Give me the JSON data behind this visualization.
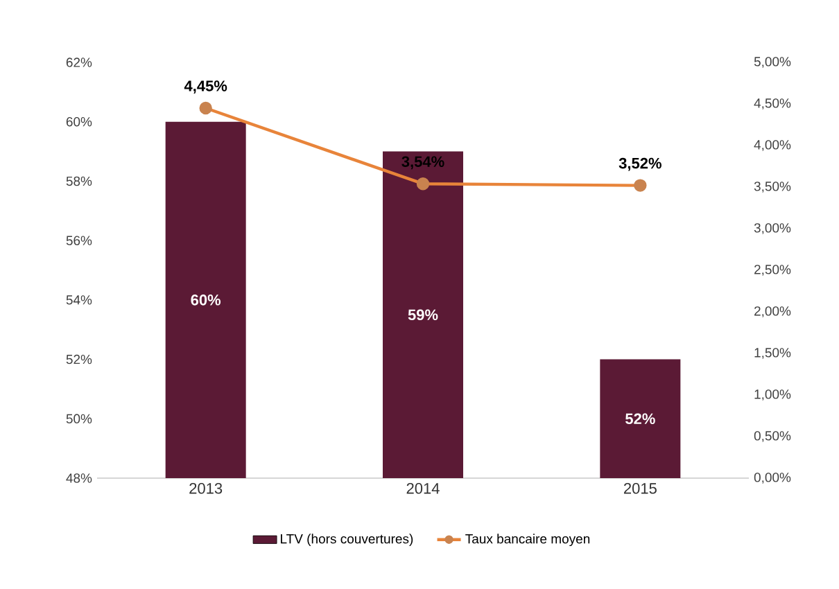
{
  "chart_data": {
    "type": "bar",
    "categories": [
      "2013",
      "2014",
      "2015"
    ],
    "series": [
      {
        "name": "LTV (hors couvertures)",
        "color": "#5b1a35",
        "values": [
          60,
          59,
          52
        ],
        "value_labels": [
          "60%",
          "59%",
          "52%"
        ]
      },
      {
        "name": "Taux bancaire moyen",
        "type": "line",
        "axis": "y2",
        "color": "#e8843a",
        "marker": "circle",
        "values": [
          4.45,
          3.54,
          3.52
        ],
        "value_labels": [
          "4,45%",
          "3,54%",
          "3,52%"
        ]
      }
    ],
    "ylim": [
      48,
      62
    ],
    "yticks": [
      {
        "value": 48,
        "label": "48%"
      },
      {
        "value": 50,
        "label": "50%"
      },
      {
        "value": 52,
        "label": "52%"
      },
      {
        "value": 54,
        "label": "54%"
      },
      {
        "value": 56,
        "label": "56%"
      },
      {
        "value": 58,
        "label": "58%"
      },
      {
        "value": 60,
        "label": "60%"
      },
      {
        "value": 62,
        "label": "62%"
      }
    ],
    "y2lim": [
      0,
      5
    ],
    "y2ticks": [
      {
        "value": 0,
        "label": "0,00%"
      },
      {
        "value": 0.5,
        "label": "0,50%"
      },
      {
        "value": 1,
        "label": "1,00%"
      },
      {
        "value": 1.5,
        "label": "1,50%"
      },
      {
        "value": 2,
        "label": "2,00%"
      },
      {
        "value": 2.5,
        "label": "2,50%"
      },
      {
        "value": 3,
        "label": "3,00%"
      },
      {
        "value": 3.5,
        "label": "3,50%"
      },
      {
        "value": 4,
        "label": "4,00%"
      },
      {
        "value": 4.5,
        "label": "4,50%"
      },
      {
        "value": 5,
        "label": "5,00%"
      }
    ],
    "legend": "bottom"
  }
}
